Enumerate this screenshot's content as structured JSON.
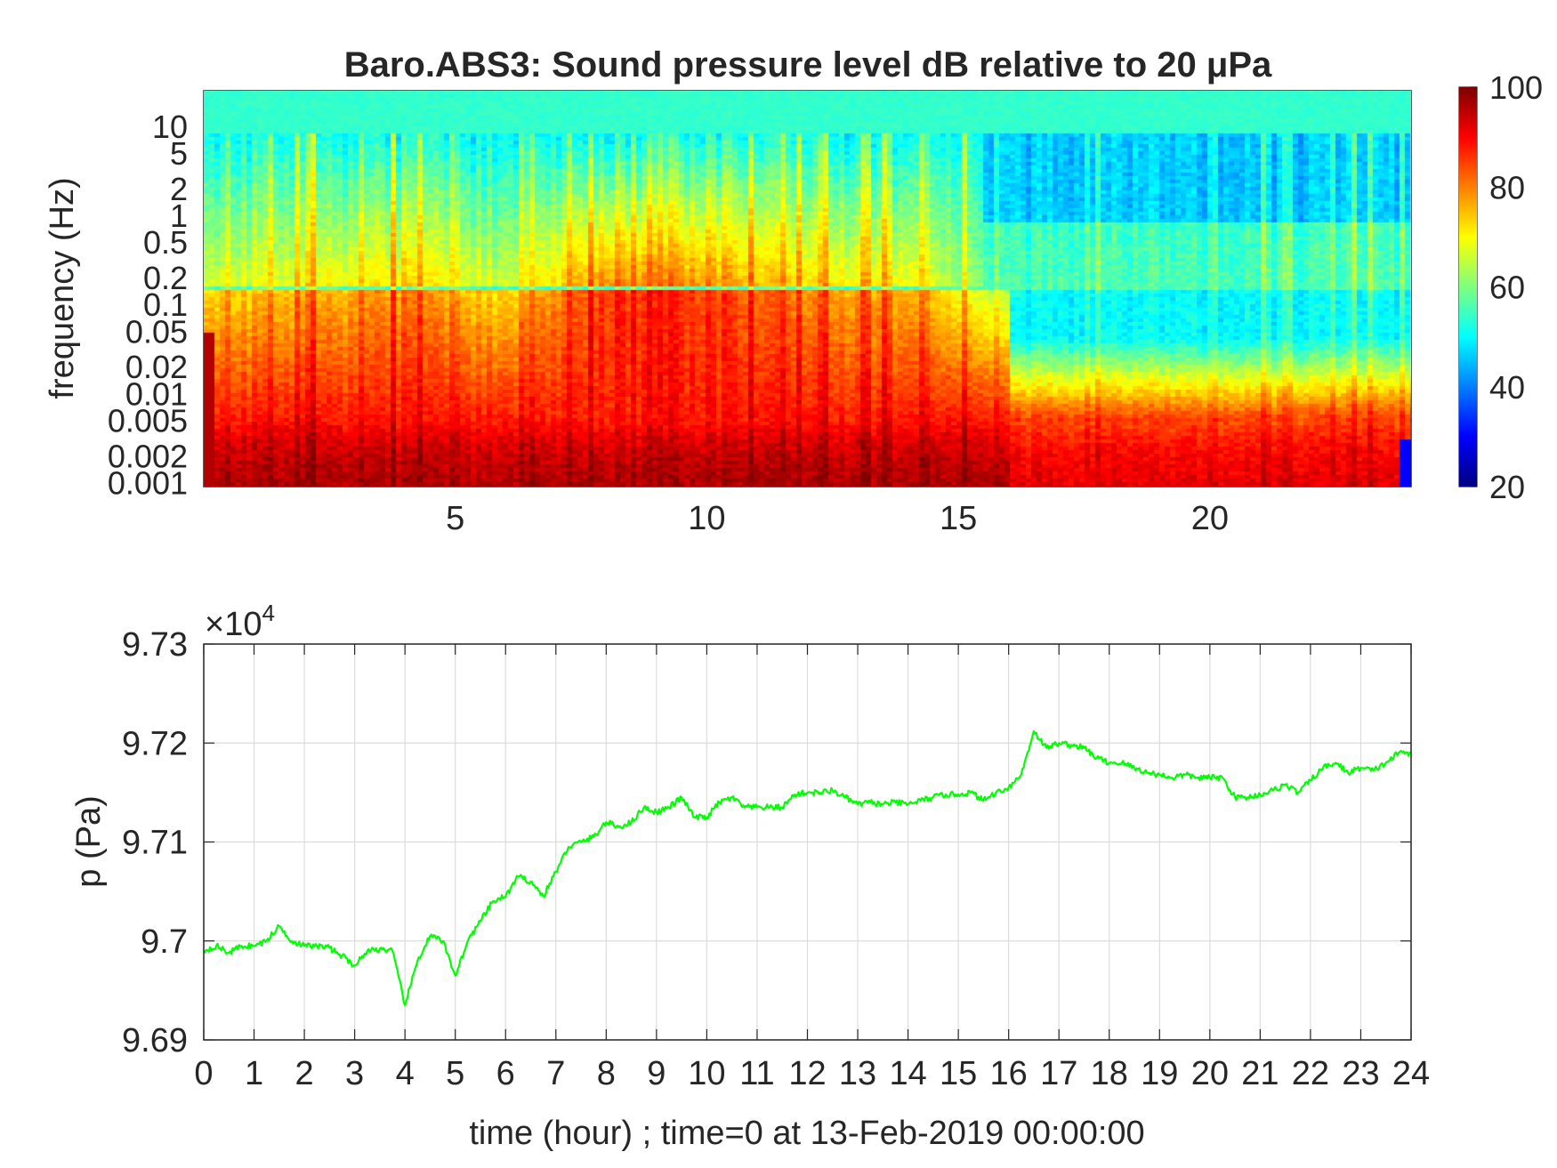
{
  "chart_data": [
    {
      "type": "heatmap",
      "title": "Baro.ABS3: Sound pressure level dB relative to 20 μPa",
      "ylabel": "frequency (Hz)",
      "xlabel": "",
      "x_ticks": [
        5,
        10,
        15,
        20
      ],
      "xlim": [
        0,
        24
      ],
      "y_scale": "log",
      "y_ticks": [
        {
          "v": 10,
          "label": "10"
        },
        {
          "v": 5,
          "label": "5"
        },
        {
          "v": 2,
          "label": "2"
        },
        {
          "v": 1,
          "label": "1"
        },
        {
          "v": 0.5,
          "label": "0.5"
        },
        {
          "v": 0.2,
          "label": "0.2"
        },
        {
          "v": 0.1,
          "label": "0.1"
        },
        {
          "v": 0.05,
          "label": "0.05"
        },
        {
          "v": 0.02,
          "label": "0.02"
        },
        {
          "v": 0.01,
          "label": "0.01"
        },
        {
          "v": 0.005,
          "label": "0.005"
        },
        {
          "v": 0.002,
          "label": "0.002"
        },
        {
          "v": 0.001,
          "label": "0.001"
        }
      ],
      "ylim": [
        0.0009,
        25
      ],
      "colormap": "jet",
      "colorbar": {
        "min": 20,
        "max": 100,
        "ticks": [
          20,
          40,
          60,
          80,
          100
        ]
      },
      "level_profile_by_hour": {
        "hours": [
          0,
          2,
          4,
          6,
          8,
          10,
          12,
          14,
          16,
          18,
          20,
          22,
          24
        ],
        "midband_level_db": [
          72,
          74,
          78,
          72,
          86,
          84,
          78,
          76,
          62,
          58,
          58,
          58,
          60
        ]
      }
    },
    {
      "type": "line",
      "xlabel": "time (hour) ; time=0 at 13-Feb-2019 00:00:00",
      "ylabel": "p (Pa)",
      "y_exponent_label": "×10",
      "y_exponent": "4",
      "xlim": [
        0,
        24
      ],
      "ylim": [
        9.69,
        9.73
      ],
      "x_ticks": [
        0,
        1,
        2,
        3,
        4,
        5,
        6,
        7,
        8,
        9,
        10,
        11,
        12,
        13,
        14,
        15,
        16,
        17,
        18,
        19,
        20,
        21,
        22,
        23,
        24
      ],
      "y_ticks": [
        9.69,
        9.7,
        9.71,
        9.72,
        9.73
      ],
      "grid": true,
      "line_color": "#00ff00",
      "x": [
        0,
        0.25,
        0.5,
        0.75,
        1,
        1.25,
        1.5,
        1.75,
        2,
        2.25,
        2.5,
        2.75,
        3,
        3.25,
        3.5,
        3.75,
        4,
        4.25,
        4.5,
        4.75,
        5,
        5.25,
        5.5,
        5.75,
        6,
        6.25,
        6.5,
        6.75,
        7,
        7.25,
        7.5,
        7.75,
        8,
        8.25,
        8.5,
        8.75,
        9,
        9.25,
        9.5,
        9.75,
        10,
        10.25,
        10.5,
        10.75,
        11,
        11.25,
        11.5,
        11.75,
        12,
        12.25,
        12.5,
        12.75,
        13,
        13.25,
        13.5,
        13.75,
        14,
        14.25,
        14.5,
        14.75,
        15,
        15.25,
        15.5,
        15.75,
        16,
        16.25,
        16.5,
        16.75,
        17,
        17.25,
        17.5,
        17.75,
        18,
        18.25,
        18.5,
        18.75,
        19,
        19.25,
        19.5,
        19.75,
        20,
        20.25,
        20.5,
        20.75,
        21,
        21.25,
        21.5,
        21.75,
        22,
        22.25,
        22.5,
        22.75,
        23,
        23.25,
        23.5,
        23.75,
        24
      ],
      "y": [
        9.699,
        9.6995,
        9.6988,
        9.6995,
        9.6995,
        9.7,
        9.7015,
        9.7,
        9.6995,
        9.6995,
        9.6993,
        9.6985,
        9.6975,
        9.699,
        9.6992,
        9.699,
        9.6935,
        9.698,
        9.7005,
        9.7,
        9.6965,
        9.7,
        9.702,
        9.704,
        9.7045,
        9.7065,
        9.706,
        9.7045,
        9.707,
        9.7095,
        9.71,
        9.7105,
        9.712,
        9.7115,
        9.712,
        9.7135,
        9.713,
        9.7135,
        9.7145,
        9.7125,
        9.7125,
        9.714,
        9.7145,
        9.7135,
        9.7135,
        9.7135,
        9.7135,
        9.7148,
        9.715,
        9.715,
        9.7152,
        9.7145,
        9.7138,
        9.714,
        9.7138,
        9.714,
        9.7138,
        9.7142,
        9.7145,
        9.7148,
        9.7148,
        9.715,
        9.7142,
        9.715,
        9.7155,
        9.7168,
        9.7212,
        9.7195,
        9.72,
        9.7198,
        9.7195,
        9.7185,
        9.718,
        9.718,
        9.7175,
        9.717,
        9.7168,
        9.7165,
        9.7168,
        9.7165,
        9.7165,
        9.7165,
        9.7145,
        9.7145,
        9.7148,
        9.7152,
        9.7158,
        9.715,
        9.7162,
        9.7175,
        9.718,
        9.717,
        9.7175,
        9.7172,
        9.718,
        9.719,
        9.719
      ]
    }
  ]
}
